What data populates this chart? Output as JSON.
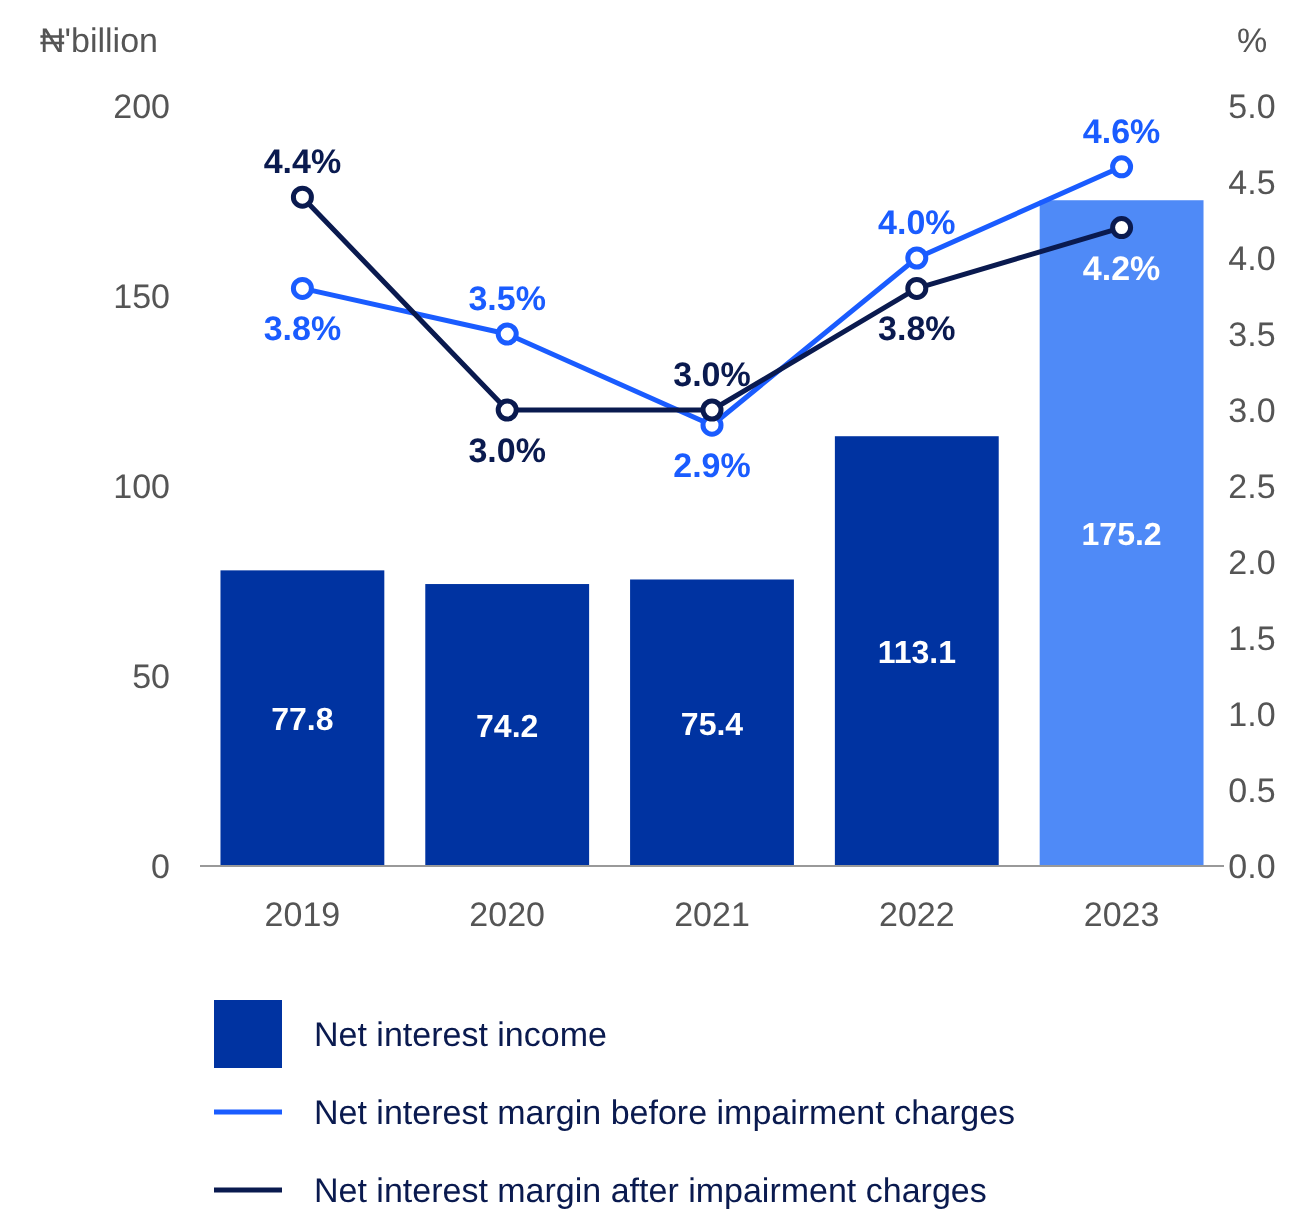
{
  "chart_data": {
    "type": "bar",
    "ylabel": "₦'billion",
    "y2label": "%",
    "categories": [
      "2019",
      "2020",
      "2021",
      "2022",
      "2023"
    ],
    "ylim": [
      0,
      200
    ],
    "yticks": [
      0,
      50,
      100,
      150,
      200
    ],
    "y2lim": [
      0,
      5
    ],
    "y2ticks": [
      {
        "value": 0,
        "label": "0.0"
      },
      {
        "value": 0.5,
        "label": "0.5"
      },
      {
        "value": 1,
        "label": "1.0"
      },
      {
        "value": 1.5,
        "label": "1.5"
      },
      {
        "value": 2,
        "label": "2.0"
      },
      {
        "value": 2.5,
        "label": "2.5"
      },
      {
        "value": 3,
        "label": "3.0"
      },
      {
        "value": 3.5,
        "label": "3.5"
      },
      {
        "value": 4,
        "label": "4.0"
      },
      {
        "value": 4.5,
        "label": "4.5"
      },
      {
        "value": 5,
        "label": "5.0"
      }
    ],
    "legend": "bottom",
    "marker": "circle",
    "line_style": "solid",
    "series": [
      {
        "name": "Net interest income",
        "color": "#0033a1",
        "colors": [
          "#0033a1",
          "#0033a1",
          "#0033a1",
          "#0033a1",
          "#4f8af7"
        ],
        "values": [
          77.8,
          74.2,
          75.4,
          113.1,
          175.2
        ],
        "data_labels": true
      },
      {
        "name": "Net interest margin before impairment charges",
        "type": "line",
        "axis": "y2",
        "color": "#1a5cff",
        "values": [
          3.8,
          3.5,
          2.9,
          4.0,
          4.6
        ],
        "value_labels": [
          "3.8%",
          "3.5%",
          "2.9%",
          "4.0%",
          "4.6%"
        ]
      },
      {
        "name": "Net interest margin after impairment charges",
        "type": "line",
        "axis": "y2",
        "color": "#0a1a4f",
        "values": [
          4.4,
          3.0,
          3.0,
          3.8,
          4.2
        ],
        "value_labels": [
          "4.4%",
          "3.0%",
          "3.0%",
          "3.8%",
          "4.2%"
        ]
      }
    ]
  }
}
